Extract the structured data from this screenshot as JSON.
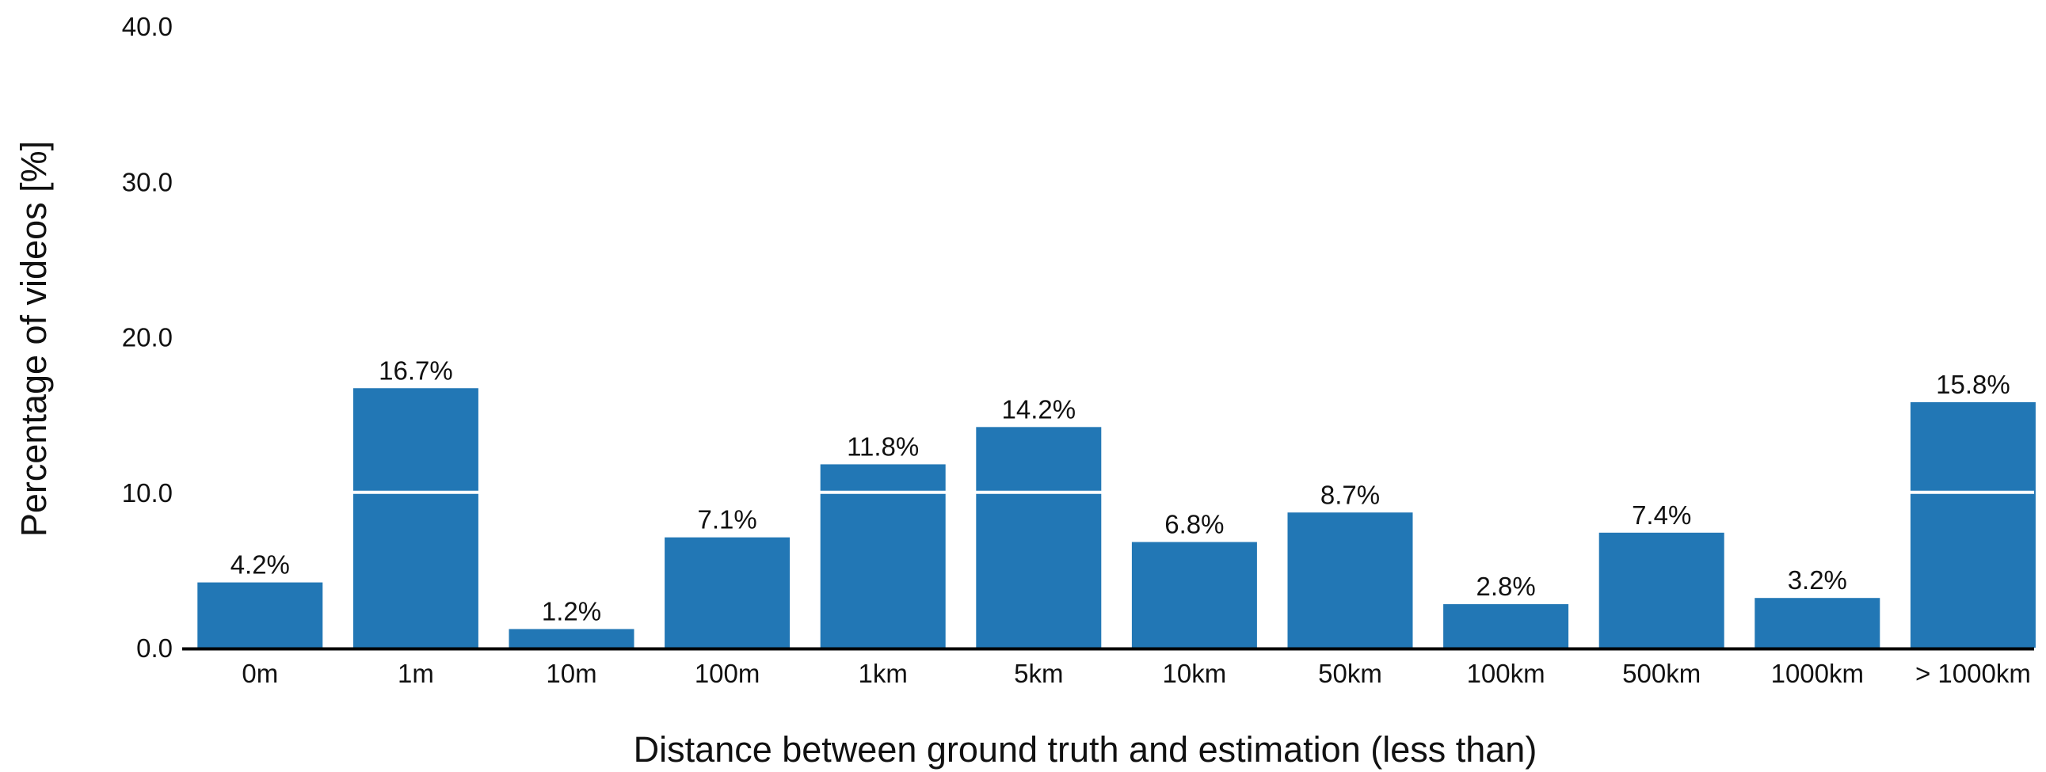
{
  "chart_data": {
    "type": "bar",
    "title": "",
    "xlabel": "Distance between ground truth and estimation (less than)",
    "ylabel": "Percentage of videos [%]",
    "categories": [
      "0m",
      "1m",
      "10m",
      "100m",
      "1km",
      "5km",
      "10km",
      "50km",
      "100km",
      "500km",
      "1000km",
      "> 1000km"
    ],
    "values": [
      4.2,
      16.7,
      1.2,
      7.1,
      11.8,
      14.2,
      6.8,
      8.7,
      2.8,
      7.4,
      3.2,
      15.8
    ],
    "data_labels": [
      "4.2%",
      "16.7%",
      "1.2%",
      "7.1%",
      "11.8%",
      "14.2%",
      "6.8%",
      "8.7%",
      "2.8%",
      "7.4%",
      "3.2%",
      "15.8%"
    ],
    "ylim": [
      0,
      40
    ],
    "yticks": [
      0,
      10,
      20,
      30,
      40
    ],
    "ytick_labels": [
      "0.0",
      "10.0",
      "20.0",
      "30.0",
      "40.0"
    ],
    "grid": "horizontal gridline at 10.0 only",
    "legend": "none",
    "colors": {
      "bar": "#2277b5",
      "gridline": "#ffffff",
      "axis": "#000000",
      "text": "#111111"
    }
  }
}
